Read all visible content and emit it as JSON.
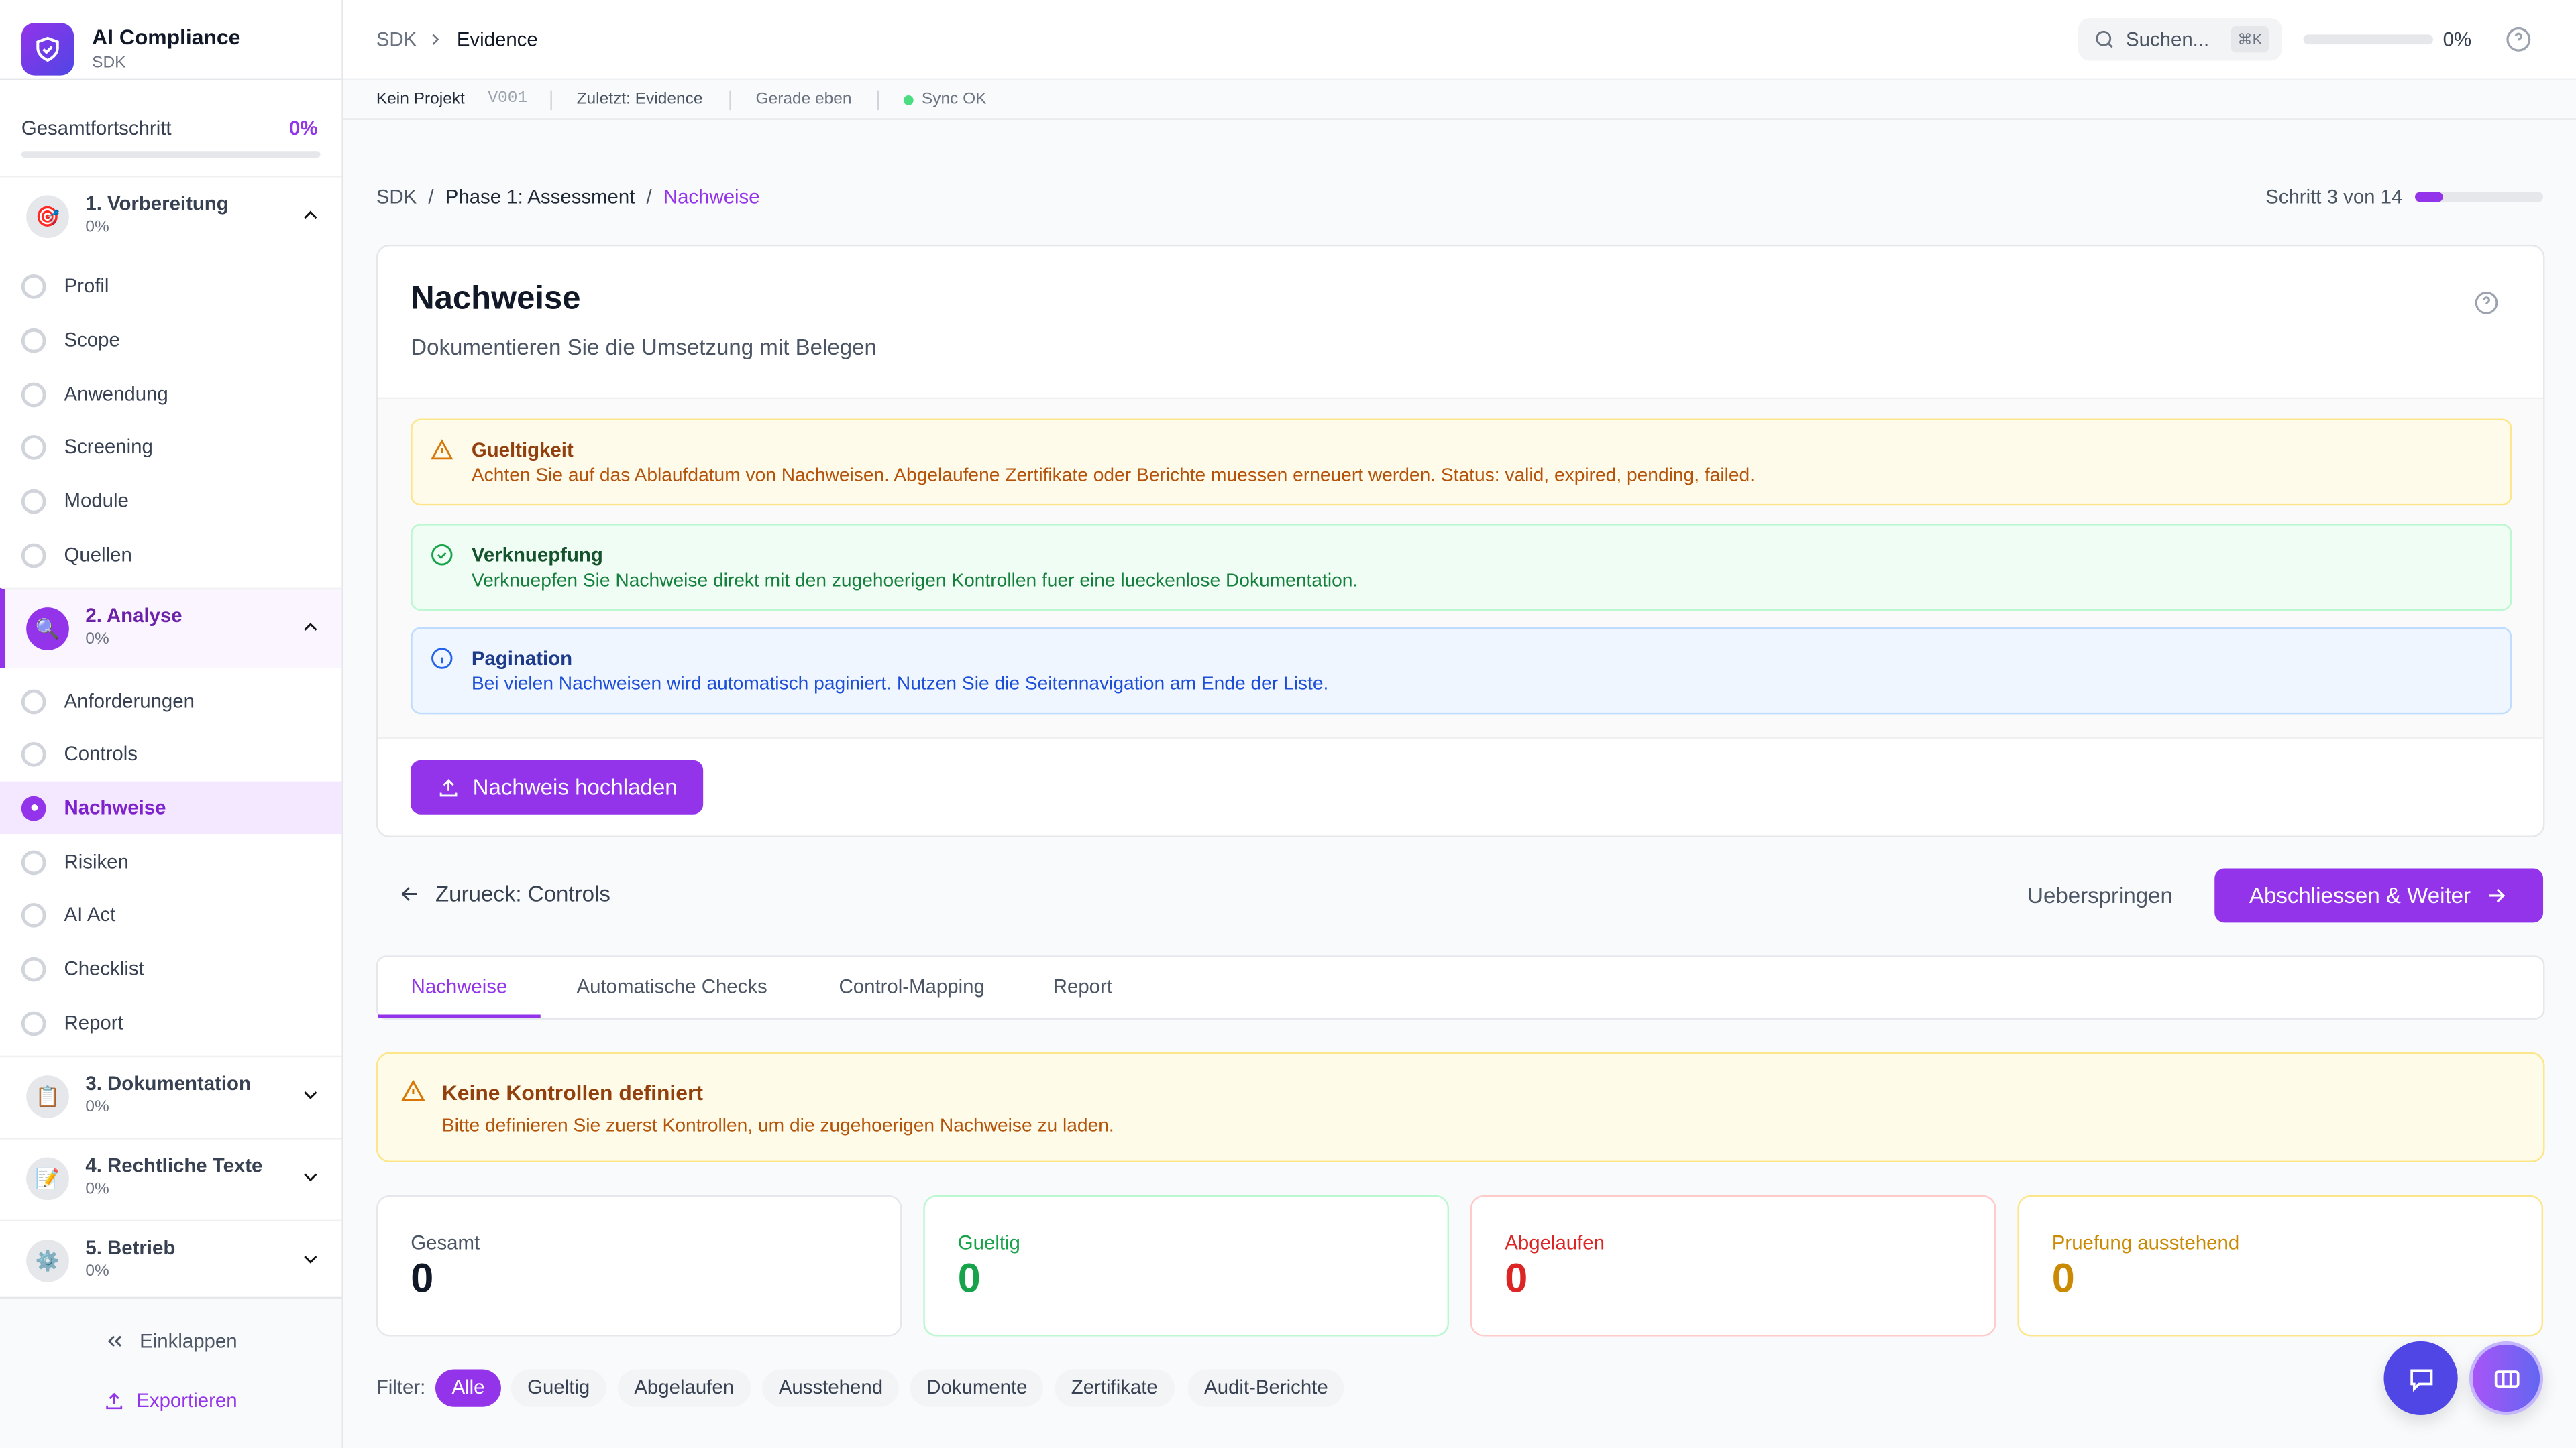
{
  "app": {
    "title": "AI Compliance",
    "subtitle": "SDK"
  },
  "sidebar": {
    "progress_label": "Gesamtfortschritt",
    "progress_value": "0%",
    "progress_fraction": 0,
    "phases": [
      {
        "title": "1. Vorbereitung",
        "percent": "0%",
        "icon": "target-icon",
        "expanded": true,
        "items": [
          "Profil",
          "Scope",
          "Anwendung",
          "Screening",
          "Module",
          "Quellen"
        ]
      },
      {
        "title": "2. Analyse",
        "percent": "0%",
        "icon": "magnifier-icon",
        "expanded": true,
        "active": true,
        "items": [
          "Anforderungen",
          "Controls",
          "Nachweise",
          "Risiken",
          "AI Act",
          "Checklist",
          "Report"
        ]
      },
      {
        "title": "3. Dokumentation",
        "percent": "0%",
        "icon": "clipboard-icon",
        "expanded": false
      },
      {
        "title": "4. Rechtliche Texte",
        "percent": "0%",
        "icon": "pencil-document-icon",
        "expanded": false
      },
      {
        "title": "5. Betrieb",
        "percent": "0%",
        "icon": "gear-icon",
        "expanded": false
      }
    ],
    "active_item": "Nachweise",
    "collapse_label": "Einklappen",
    "export_label": "Exportieren"
  },
  "topbar": {
    "crumb_root": "SDK",
    "crumb_current": "Evidence",
    "search_placeholder": "Suchen...",
    "search_shortcut": "⌘K",
    "progress_value": "0%",
    "progress_fraction": 0
  },
  "statusbar": {
    "project": "Kein Projekt",
    "version": "V001",
    "last": "Zuletzt: Evidence",
    "time": "Gerade eben",
    "sync": "Sync OK",
    "sync_color": "#4ade80"
  },
  "breadcrumb": {
    "root": "SDK",
    "phase": "Phase 1: Assessment",
    "current": "Nachweise",
    "sep": "/",
    "step_label": "Schritt 3 von 14",
    "step": 3,
    "total": 14
  },
  "header": {
    "title": "Nachweise",
    "subtitle": "Dokumentieren Sie die Umsetzung mit Belegen"
  },
  "alerts": [
    {
      "title": "Gueltigkeit",
      "body": "Achten Sie auf das Ablaufdatum von Nachweisen. Abgelaufene Zertifikate oder Berichte muessen erneuert werden. Status: valid, expired, pending, failed."
    },
    {
      "title": "Verknuepfung",
      "body": "Verknuepfen Sie Nachweise direkt mit den zugehoerigen Kontrollen fuer eine lueckenlose Dokumentation."
    },
    {
      "title": "Pagination",
      "body": "Bei vielen Nachweisen wird automatisch paginiert. Nutzen Sie die Seitennavigation am Ende der Liste."
    }
  ],
  "upload_label": "Nachweis hochladen",
  "nav": {
    "back": "Zurueck: Controls",
    "skip": "Ueberspringen",
    "next": "Abschliessen & Weiter"
  },
  "tabs": [
    "Nachweise",
    "Automatische Checks",
    "Control-Mapping",
    "Report"
  ],
  "active_tab": "Nachweise",
  "warning": {
    "title": "Keine Kontrollen definiert",
    "body": "Bitte definieren Sie zuerst Kontrollen, um die zugehoerigen Nachweise zu laden."
  },
  "stats": [
    {
      "label": "Gesamt",
      "value": "0"
    },
    {
      "label": "Gueltig",
      "value": "0"
    },
    {
      "label": "Abgelaufen",
      "value": "0"
    },
    {
      "label": "Pruefung ausstehend",
      "value": "0"
    }
  ],
  "filter": {
    "label": "Filter:",
    "chips": [
      "Alle",
      "Gueltig",
      "Abgelaufen",
      "Ausstehend",
      "Dokumente",
      "Zertifikate",
      "Audit-Berichte"
    ],
    "active": "Alle"
  },
  "colors": {
    "accent": "#9333ea",
    "chat": "#4f46e5"
  }
}
